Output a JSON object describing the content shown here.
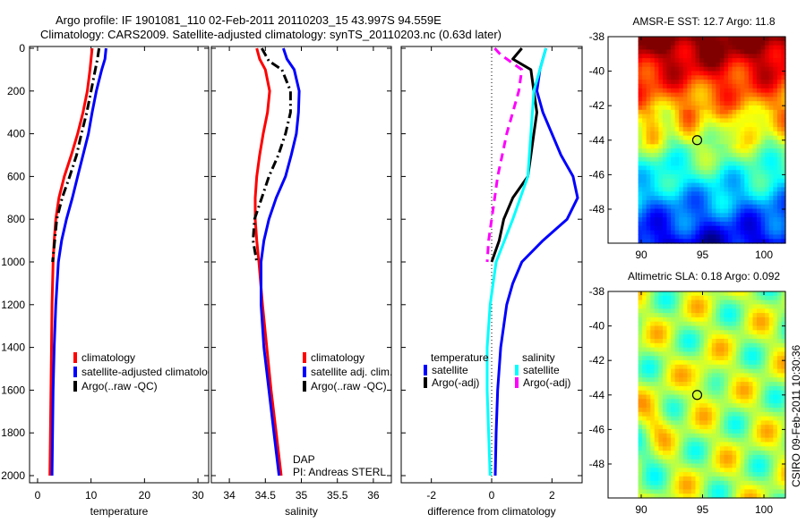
{
  "title_line1": "Argo profile: IF 1901081_110 02-Feb-2011 20110203_15 43.997S 94.559E",
  "title_line2": "Climatology: CARS2009. Satellite-adjusted climatology: synTS_20110203.nc (0.63d later)",
  "side_stamp": "CSIRO 09-Feb-2011 10:30:36",
  "colors": {
    "climatology": "#ff0000",
    "satellite": "#0000ff",
    "argo": "#000000",
    "sal_satellite": "#00ffff",
    "sal_argo": "#ff00ff"
  },
  "chart_data": [
    {
      "type": "line",
      "id": "temperature",
      "xlabel": "temperature",
      "ylabel": "",
      "xlim": [
        -1.5,
        32
      ],
      "ylim": [
        2000,
        0
      ],
      "xticks": [
        "0",
        "10",
        "20",
        "30"
      ],
      "xtickvals": [
        0,
        10,
        20,
        30
      ],
      "yticks": [
        "0",
        "200",
        "400",
        "600",
        "800",
        "1000",
        "1200",
        "1400",
        "1600",
        "1800",
        "2000"
      ],
      "ytickvals": [
        0,
        200,
        400,
        600,
        800,
        1000,
        1200,
        1400,
        1600,
        1800,
        2000
      ],
      "legend": [
        "climatology",
        "satellite-adjusted climatolog",
        "Argo(..raw -QC)"
      ],
      "series": [
        {
          "name": "climatology",
          "color": "#ff0000",
          "style": "solid",
          "depth": [
            0,
            50,
            100,
            200,
            300,
            400,
            500,
            600,
            700,
            800,
            900,
            1000,
            1200,
            1400,
            1600,
            1800,
            2000
          ],
          "values": [
            10.2,
            10.0,
            9.8,
            9.3,
            8.5,
            7.5,
            6.3,
            5.0,
            4.0,
            3.4,
            3.1,
            2.9,
            2.7,
            2.6,
            2.5,
            2.4,
            2.3
          ]
        },
        {
          "name": "satellite-adjusted climatology",
          "color": "#0000ff",
          "style": "solid",
          "depth": [
            0,
            50,
            100,
            200,
            300,
            400,
            500,
            600,
            700,
            800,
            900,
            1000,
            1200,
            1400,
            1600,
            1800,
            2000
          ],
          "values": [
            12.8,
            12.6,
            12.0,
            11.0,
            10.2,
            9.5,
            8.5,
            7.5,
            6.5,
            5.4,
            4.5,
            3.9,
            3.4,
            3.1,
            2.9,
            2.8,
            2.7
          ]
        },
        {
          "name": "Argo(..raw -QC)",
          "color": "#000000",
          "style": "dashdot",
          "depth": [
            0,
            50,
            100,
            200,
            300,
            400,
            500,
            600,
            700,
            800,
            900,
            1000
          ],
          "values": [
            11.5,
            11.2,
            10.8,
            10.0,
            9.2,
            8.2,
            7.3,
            6.0,
            4.6,
            3.6,
            3.2,
            2.8
          ]
        }
      ]
    },
    {
      "type": "line",
      "id": "salinity",
      "xlabel": "salinity",
      "xlim": [
        33.75,
        36.25
      ],
      "ylim": [
        2000,
        0
      ],
      "xticks": [
        "34",
        "34.5",
        "35",
        "35.5",
        "36"
      ],
      "xtickvals": [
        34,
        34.5,
        35,
        35.5,
        36
      ],
      "ytickvals": [
        0,
        200,
        400,
        600,
        800,
        1000,
        1200,
        1400,
        1600,
        1800,
        2000
      ],
      "legend": [
        "climatology",
        "satellite adj. clim.",
        "Argo(..raw -QC)"
      ],
      "annotation": [
        "DAP",
        "PI: Andreas STERL"
      ],
      "series": [
        {
          "name": "climatology",
          "color": "#ff0000",
          "style": "solid",
          "depth": [
            0,
            50,
            100,
            200,
            300,
            400,
            500,
            600,
            700,
            800,
            900,
            1000,
            1200,
            1400,
            1600,
            1800,
            2000
          ],
          "values": [
            34.38,
            34.42,
            34.5,
            34.56,
            34.53,
            34.47,
            34.42,
            34.38,
            34.36,
            34.36,
            34.38,
            34.41,
            34.46,
            34.52,
            34.58,
            34.65,
            34.72
          ]
        },
        {
          "name": "satellite adj. clim.",
          "color": "#0000ff",
          "style": "solid",
          "depth": [
            0,
            50,
            100,
            200,
            300,
            400,
            500,
            600,
            700,
            800,
            900,
            1000,
            1200,
            1400,
            1600,
            1800,
            2000
          ],
          "values": [
            34.75,
            34.8,
            34.9,
            34.97,
            34.96,
            34.93,
            34.86,
            34.78,
            34.65,
            34.55,
            34.48,
            34.44,
            34.44,
            34.48,
            34.55,
            34.62,
            34.69
          ]
        },
        {
          "name": "Argo(..raw -QC)",
          "color": "#000000",
          "style": "dashdot",
          "depth": [
            0,
            30,
            60,
            100,
            200,
            300,
            400,
            500,
            600,
            700,
            800,
            900,
            1000
          ],
          "values": [
            34.45,
            34.5,
            34.55,
            34.73,
            34.85,
            34.85,
            34.78,
            34.68,
            34.55,
            34.45,
            34.35,
            34.33,
            34.38
          ]
        }
      ]
    },
    {
      "type": "line",
      "id": "difference",
      "xlabel": "difference from climatology",
      "xlim": [
        -3,
        3
      ],
      "ylim": [
        2000,
        0
      ],
      "xticks": [
        "-2",
        "0",
        "2"
      ],
      "xtickvals": [
        -2,
        0,
        2
      ],
      "ytickvals": [
        0,
        200,
        400,
        600,
        800,
        1000,
        1200,
        1400,
        1600,
        1800,
        2000
      ],
      "legend_headers": [
        "temperature",
        "salinity"
      ],
      "legend": [
        "satellite",
        "Argo(-adj)",
        "satellite",
        "Argo(-adj)"
      ],
      "series": [
        {
          "name": "temperature satellite",
          "color": "#0000ff",
          "style": "solid",
          "depth": [
            0,
            50,
            100,
            200,
            300,
            400,
            500,
            600,
            700,
            800,
            900,
            1000,
            1100,
            1200,
            1400,
            1600,
            1800,
            2000
          ],
          "values": [
            1.8,
            1.7,
            1.6,
            1.5,
            1.7,
            2.0,
            2.3,
            2.7,
            2.85,
            2.5,
            1.7,
            1.0,
            0.7,
            0.5,
            0.3,
            0.2,
            0.15,
            0.12
          ]
        },
        {
          "name": "temperature Argo(-adj)",
          "color": "#000000",
          "style": "solid",
          "depth": [
            0,
            50,
            100,
            200,
            300,
            400,
            500,
            600,
            700,
            800,
            900,
            1000
          ],
          "values": [
            1.0,
            0.7,
            1.3,
            1.4,
            1.5,
            1.4,
            1.3,
            1.2,
            0.7,
            0.4,
            0.25,
            0.0
          ]
        },
        {
          "name": "salinity satellite",
          "color": "#00ffff",
          "style": "solid",
          "depth": [
            0,
            100,
            200,
            400,
            600,
            800,
            1000,
            1200,
            1400,
            1600,
            1800,
            2000
          ],
          "values": [
            1.8,
            1.6,
            1.4,
            1.3,
            1.2,
            0.7,
            0.15,
            -0.05,
            -0.15,
            -0.15,
            -0.1,
            -0.05
          ]
        },
        {
          "name": "salinity Argo(-adj)",
          "color": "#ff00ff",
          "style": "dashed",
          "depth": [
            0,
            30,
            100,
            200,
            300,
            400,
            500,
            600,
            700,
            800,
            900,
            1000
          ],
          "values": [
            0.1,
            0.3,
            1.0,
            0.9,
            0.7,
            0.5,
            0.35,
            0.2,
            0.1,
            0.0,
            -0.1,
            -0.15
          ]
        }
      ]
    },
    {
      "type": "heatmap",
      "id": "sst_map",
      "title": "AMSR-E SST: 12.7 Argo: 11.8",
      "xlim": [
        87.3,
        101.75
      ],
      "ylim": [
        -49.97,
        -38
      ],
      "xticks": [
        "90",
        "95",
        "100"
      ],
      "xtickvals": [
        90,
        95,
        100
      ],
      "yticks": [
        "-38",
        "-40",
        "-42",
        "-44",
        "-46",
        "-48"
      ],
      "ytickvals": [
        -38,
        -40,
        -42,
        -44,
        -46,
        -48
      ],
      "data_extent": {
        "lon": [
          89.75,
          101.75
        ],
        "lat": [
          -49.97,
          -38
        ]
      },
      "marker": {
        "lon": 94.559,
        "lat": -43.997
      }
    },
    {
      "type": "heatmap",
      "id": "sla_map",
      "title": "Altimetric SLA: 0.18 Argo: 0.092",
      "xlim": [
        87.3,
        101.75
      ],
      "ylim": [
        -49.97,
        -38
      ],
      "xticks": [
        "90",
        "95",
        "100"
      ],
      "xtickvals": [
        90,
        95,
        100
      ],
      "yticks": [
        "-38",
        "-40",
        "-42",
        "-44",
        "-46",
        "-48"
      ],
      "ytickvals": [
        -38,
        -40,
        -42,
        -44,
        -46,
        -48
      ],
      "data_extent": {
        "lon": [
          89.75,
          101.75
        ],
        "lat": [
          -49.97,
          -38
        ]
      },
      "marker": {
        "lon": 94.559,
        "lat": -43.997
      }
    }
  ]
}
